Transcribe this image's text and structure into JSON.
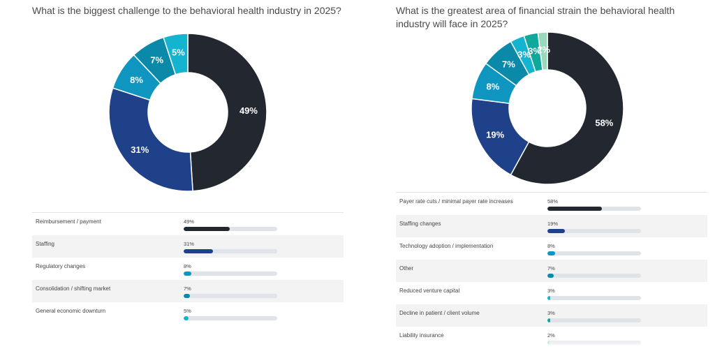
{
  "chart_data": [
    {
      "type": "pie",
      "title": "What is the biggest challenge to the behavioral health industry in 2025?",
      "categories": [
        "Reimbursement / payment",
        "Staffing",
        "Regulatory changes",
        "Consolidation / shifting market",
        "General economic downturn"
      ],
      "values": [
        49,
        31,
        8,
        7,
        5
      ],
      "value_labels": [
        "49%",
        "31%",
        "8%",
        "7%",
        "5%"
      ],
      "colors": [
        "#232830",
        "#1e418a",
        "#0e96c0",
        "#0a8aa8",
        "#14b3cf"
      ]
    },
    {
      "type": "pie",
      "title": "What is the greatest area of financial strain the behavioral health industry will face in 2025?",
      "categories": [
        "Payer rate cuts / minimal payer rate increases",
        "Staffing changes",
        "Technology adoption / implementation",
        "Other",
        "Reduced venture capital",
        "Decline in patient / client volume",
        "Liability insurance"
      ],
      "values": [
        58,
        19,
        8,
        7,
        3,
        3,
        2
      ],
      "value_labels": [
        "58%",
        "19%",
        "8%",
        "7%",
        "3%",
        "3%",
        "2%"
      ],
      "colors": [
        "#232830",
        "#1e418a",
        "#0e96c0",
        "#0a8aa8",
        "#14b3cf",
        "#10a89a",
        "#9ad8bd"
      ]
    }
  ]
}
